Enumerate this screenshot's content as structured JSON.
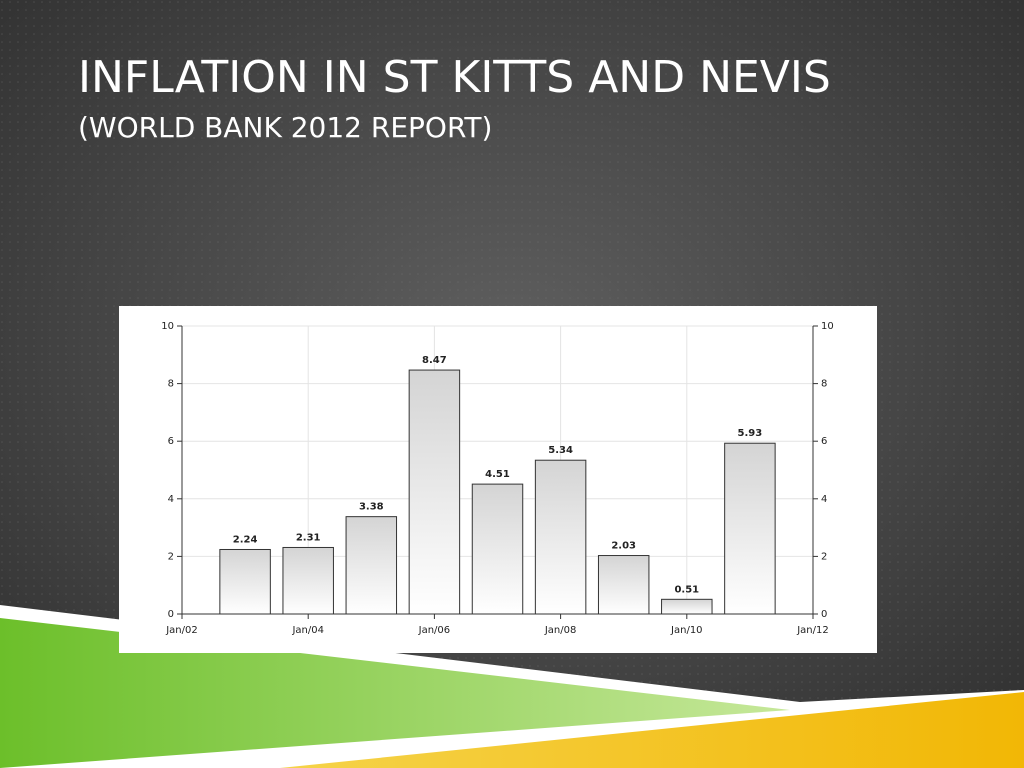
{
  "title": "INFLATION IN ST KITTS AND NEVIS",
  "subtitle": "(WORLD BANK 2012 REPORT)",
  "chart_data": {
    "type": "bar",
    "categories": [
      "Jan/02",
      null,
      "Jan/04",
      null,
      "Jan/06",
      null,
      "Jan/08",
      null,
      "Jan/10",
      null,
      "Jan/12"
    ],
    "values": [
      null,
      2.24,
      2.31,
      3.38,
      8.47,
      4.51,
      5.34,
      2.03,
      0.51,
      5.93,
      null
    ],
    "color": "#d4d4d4",
    "ylim": [
      0,
      10
    ],
    "yticks": [
      0,
      2,
      4,
      6,
      8,
      10
    ],
    "y2lim": [
      0,
      10
    ],
    "y2ticks": [
      0,
      2,
      4,
      6,
      8,
      10
    ],
    "grid": true
  }
}
